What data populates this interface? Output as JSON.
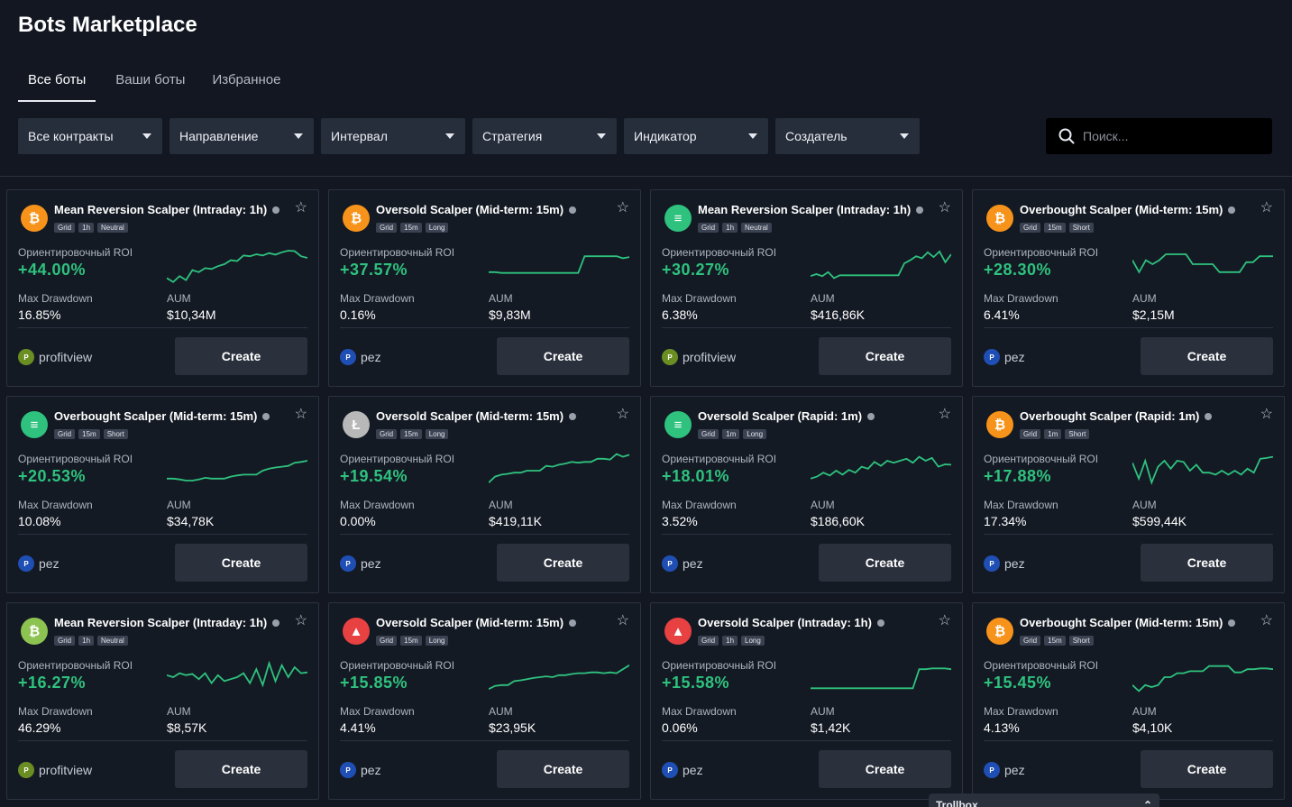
{
  "header": {
    "title": "Bots Marketplace"
  },
  "tabs": [
    {
      "label": "Все боты",
      "active": true
    },
    {
      "label": "Ваши боты",
      "active": false
    },
    {
      "label": "Избранное",
      "active": false
    }
  ],
  "filters": [
    {
      "label": "Все контракты"
    },
    {
      "label": "Направление"
    },
    {
      "label": "Интервал"
    },
    {
      "label": "Стратегия"
    },
    {
      "label": "Индикатор"
    },
    {
      "label": "Создатель"
    }
  ],
  "search": {
    "placeholder": "Поиск..."
  },
  "labels": {
    "roi": "Ориентировочный ROI",
    "drawdown": "Max Drawdown",
    "aum": "AUM",
    "create": "Create"
  },
  "bots": [
    {
      "name": "Mean Reversion Scalper (Intraday: 1h)",
      "coin": "btc",
      "tags": [
        "Grid",
        "1h",
        "Neutral"
      ],
      "roi": "+44.00%",
      "drawdown": "16.85%",
      "aum": "$10,34M",
      "creator": "profitview",
      "spark": [
        0.15,
        0.05,
        0.2,
        0.1,
        0.35,
        0.3,
        0.4,
        0.38,
        0.45,
        0.5,
        0.6,
        0.58,
        0.72,
        0.7,
        0.75,
        0.72,
        0.78,
        0.74,
        0.8,
        0.84,
        0.83,
        0.7,
        0.66
      ]
    },
    {
      "name": "Oversold Scalper (Mid-term: 15m)",
      "coin": "btc",
      "tags": [
        "Grid",
        "15m",
        "Long"
      ],
      "roi": "+37.57%",
      "drawdown": "0.16%",
      "aum": "$9,83M",
      "creator": "pez",
      "spark": [
        0.3,
        0.3,
        0.28,
        0.28,
        0.28,
        0.28,
        0.28,
        0.28,
        0.28,
        0.28,
        0.28,
        0.28,
        0.28,
        0.28,
        0.28,
        0.7,
        0.7,
        0.7,
        0.7,
        0.7,
        0.7,
        0.65,
        0.68
      ]
    },
    {
      "name": "Mean Reversion Scalper (Intraday: 1h)",
      "coin": "menu",
      "tags": [
        "Grid",
        "1h",
        "Neutral"
      ],
      "roi": "+30.27%",
      "drawdown": "6.38%",
      "aum": "$416,86K",
      "creator": "profitview",
      "spark": [
        0.2,
        0.25,
        0.2,
        0.3,
        0.15,
        0.22,
        0.22,
        0.22,
        0.22,
        0.22,
        0.22,
        0.22,
        0.22,
        0.22,
        0.22,
        0.22,
        0.52,
        0.6,
        0.7,
        0.65,
        0.8,
        0.68,
        0.82,
        0.55,
        0.75
      ]
    },
    {
      "name": "Overbought Scalper (Mid-term: 15m)",
      "coin": "btc",
      "tags": [
        "Grid",
        "15m",
        "Short"
      ],
      "roi": "+28.30%",
      "drawdown": "6.41%",
      "aum": "$2,15M",
      "creator": "pez",
      "spark": [
        0.6,
        0.3,
        0.6,
        0.5,
        0.6,
        0.75,
        0.75,
        0.75,
        0.75,
        0.5,
        0.5,
        0.5,
        0.5,
        0.3,
        0.3,
        0.3,
        0.3,
        0.55,
        0.55,
        0.7,
        0.7,
        0.7
      ]
    },
    {
      "name": "Overbought Scalper (Mid-term: 15m)",
      "coin": "menu",
      "tags": [
        "Grid",
        "15m",
        "Short"
      ],
      "roi": "+20.53%",
      "drawdown": "10.08%",
      "aum": "$34,78K",
      "creator": "pez",
      "spark": [
        0.3,
        0.3,
        0.28,
        0.25,
        0.25,
        0.28,
        0.32,
        0.3,
        0.3,
        0.3,
        0.35,
        0.38,
        0.4,
        0.4,
        0.4,
        0.5,
        0.55,
        0.58,
        0.6,
        0.62,
        0.7,
        0.72,
        0.75
      ]
    },
    {
      "name": "Oversold Scalper (Mid-term: 15m)",
      "coin": "ltc",
      "tags": [
        "Grid",
        "15m",
        "Long"
      ],
      "roi": "+19.54%",
      "drawdown": "0.00%",
      "aum": "$419,11K",
      "creator": "pez",
      "spark": [
        0.2,
        0.35,
        0.4,
        0.42,
        0.45,
        0.45,
        0.5,
        0.5,
        0.5,
        0.62,
        0.6,
        0.65,
        0.68,
        0.72,
        0.7,
        0.72,
        0.72,
        0.8,
        0.8,
        0.78,
        0.92,
        0.85,
        0.9
      ]
    },
    {
      "name": "Oversold Scalper (Rapid: 1m)",
      "coin": "menu",
      "tags": [
        "Grid",
        "1m",
        "Long"
      ],
      "roi": "+18.01%",
      "drawdown": "3.52%",
      "aum": "$186,60K",
      "creator": "pez",
      "spark": [
        0.3,
        0.35,
        0.45,
        0.38,
        0.5,
        0.4,
        0.52,
        0.45,
        0.6,
        0.55,
        0.72,
        0.62,
        0.75,
        0.7,
        0.75,
        0.8,
        0.7,
        0.85,
        0.75,
        0.82,
        0.6,
        0.66,
        0.65
      ]
    },
    {
      "name": "Overbought Scalper (Rapid: 1m)",
      "coin": "btc",
      "tags": [
        "Grid",
        "1m",
        "Short"
      ],
      "roi": "+17.88%",
      "drawdown": "17.34%",
      "aum": "$599,44K",
      "creator": "pez",
      "spark": [
        0.7,
        0.3,
        0.75,
        0.2,
        0.6,
        0.75,
        0.55,
        0.75,
        0.72,
        0.5,
        0.65,
        0.45,
        0.45,
        0.4,
        0.5,
        0.4,
        0.5,
        0.4,
        0.55,
        0.45,
        0.8,
        0.82,
        0.85
      ]
    },
    {
      "name": "Mean Reversion Scalper (Intraday: 1h)",
      "coin": "bch",
      "tags": [
        "Grid",
        "1h",
        "Neutral"
      ],
      "roi": "+16.27%",
      "drawdown": "46.29%",
      "aum": "$8,57K",
      "creator": "profitview",
      "spark": [
        0.55,
        0.5,
        0.6,
        0.55,
        0.58,
        0.45,
        0.6,
        0.35,
        0.55,
        0.4,
        0.45,
        0.5,
        0.6,
        0.35,
        0.7,
        0.3,
        0.85,
        0.4,
        0.8,
        0.5,
        0.75,
        0.6,
        0.62
      ]
    },
    {
      "name": "Oversold Scalper (Mid-term: 15m)",
      "coin": "avax",
      "tags": [
        "Grid",
        "15m",
        "Long"
      ],
      "roi": "+15.85%",
      "drawdown": "4.41%",
      "aum": "$23,95K",
      "creator": "pez",
      "spark": [
        0.2,
        0.28,
        0.3,
        0.3,
        0.4,
        0.42,
        0.45,
        0.48,
        0.5,
        0.52,
        0.5,
        0.55,
        0.55,
        0.58,
        0.6,
        0.6,
        0.62,
        0.62,
        0.6,
        0.62,
        0.6,
        0.7,
        0.8
      ]
    },
    {
      "name": "Oversold Scalper (Intraday: 1h)",
      "coin": "avax",
      "tags": [
        "Grid",
        "1h",
        "Long"
      ],
      "roi": "+15.58%",
      "drawdown": "0.06%",
      "aum": "$1,42K",
      "creator": "pez",
      "spark": [
        0.22,
        0.22,
        0.22,
        0.22,
        0.22,
        0.22,
        0.22,
        0.22,
        0.22,
        0.22,
        0.22,
        0.22,
        0.22,
        0.22,
        0.22,
        0.22,
        0.22,
        0.7,
        0.7,
        0.72,
        0.72,
        0.72,
        0.7
      ]
    },
    {
      "name": "Overbought Scalper (Mid-term: 15m)",
      "coin": "btc",
      "tags": [
        "Grid",
        "15m",
        "Short"
      ],
      "roi": "+15.45%",
      "drawdown": "4.13%",
      "aum": "$4,10K",
      "creator": "pez",
      "spark": [
        0.3,
        0.15,
        0.3,
        0.25,
        0.3,
        0.5,
        0.5,
        0.6,
        0.6,
        0.65,
        0.65,
        0.65,
        0.78,
        0.78,
        0.78,
        0.78,
        0.62,
        0.62,
        0.7,
        0.7,
        0.72,
        0.72,
        0.7
      ]
    }
  ],
  "trollbox": {
    "label": "Trollbox"
  }
}
